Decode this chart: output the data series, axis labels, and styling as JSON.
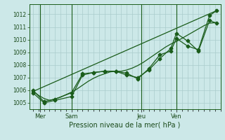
{
  "xlabel": "Pression niveau de la mer( hPa )",
  "ylim": [
    1004.5,
    1012.8
  ],
  "background_color": "#cce8e8",
  "grid_color": "#aacccc",
  "line_color": "#1a5c1a",
  "day_labels": [
    "Mer",
    "Sam",
    "Jeu",
    "Ven"
  ],
  "day_positions": [
    0.04,
    0.21,
    0.59,
    0.78
  ],
  "xlim": [
    0.0,
    1.0
  ],
  "series1_smooth": {
    "x": [
      0.0,
      0.03,
      0.06,
      0.09,
      0.12,
      0.15,
      0.18,
      0.21,
      0.24,
      0.27,
      0.3,
      0.33,
      0.36,
      0.39,
      0.42,
      0.45,
      0.48,
      0.51,
      0.54,
      0.57,
      0.6,
      0.63,
      0.66,
      0.69,
      0.72,
      0.75,
      0.78,
      0.81,
      0.84,
      0.87,
      0.9,
      0.93,
      0.96,
      1.0
    ],
    "y": [
      1005.95,
      1005.6,
      1005.35,
      1005.2,
      1005.3,
      1005.45,
      1005.65,
      1005.85,
      1006.1,
      1006.4,
      1006.7,
      1006.95,
      1007.15,
      1007.3,
      1007.45,
      1007.5,
      1007.5,
      1007.6,
      1007.75,
      1007.95,
      1008.2,
      1008.5,
      1008.8,
      1009.1,
      1009.4,
      1009.65,
      1009.85,
      1010.1,
      1010.35,
      1010.6,
      1010.85,
      1011.1,
      1011.3,
      1011.35
    ]
  },
  "series2": {
    "x": [
      0.0,
      0.06,
      0.12,
      0.21,
      0.27,
      0.33,
      0.39,
      0.45,
      0.51,
      0.57,
      0.63,
      0.69,
      0.75,
      0.78,
      0.84,
      0.9,
      0.96,
      1.0
    ],
    "y": [
      1005.8,
      1005.0,
      1005.2,
      1005.5,
      1007.2,
      1007.4,
      1007.5,
      1007.5,
      1007.2,
      1007.0,
      1007.6,
      1008.5,
      1009.3,
      1010.5,
      1009.9,
      1009.1,
      1011.5,
      1011.3
    ]
  },
  "series3": {
    "x": [
      0.0,
      0.06,
      0.12,
      0.21,
      0.27,
      0.33,
      0.39,
      0.45,
      0.51,
      0.57,
      0.63,
      0.69,
      0.75,
      0.78,
      0.84,
      0.9,
      0.96,
      1.0
    ],
    "y": [
      1006.0,
      1005.1,
      1005.3,
      1005.8,
      1007.3,
      1007.4,
      1007.5,
      1007.5,
      1007.35,
      1006.9,
      1007.7,
      1008.8,
      1009.1,
      1010.1,
      1009.5,
      1009.2,
      1011.9,
      1012.3
    ]
  },
  "series4_linear": {
    "x": [
      0.0,
      1.0
    ],
    "y": [
      1005.9,
      1012.3
    ]
  }
}
